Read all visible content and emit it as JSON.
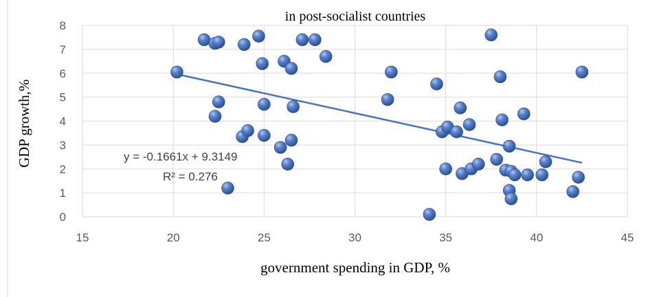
{
  "chart_data": {
    "type": "scatter",
    "title": "in post-socialist countries",
    "xlabel": "government spending in GDP, %",
    "ylabel": "GDP growth,%",
    "xlim": [
      15,
      45
    ],
    "ylim": [
      0,
      8
    ],
    "x_ticks": [
      "15",
      "20",
      "25",
      "30",
      "35",
      "40",
      "45"
    ],
    "y_ticks": [
      "0",
      "1",
      "2",
      "3",
      "4",
      "5",
      "6",
      "7",
      "8"
    ],
    "grid": true,
    "legend": "none",
    "colors": {
      "point": "#4472c4",
      "trendline": "#4472c4",
      "grid": "#d9d9d9"
    },
    "trendline": {
      "slope": -0.1661,
      "intercept": 9.3149,
      "x_range": [
        20.2,
        42.5
      ],
      "equation": "y = -0.1661x + 9.3149",
      "r_squared": "R² = 0.276"
    },
    "points": [
      {
        "x": 20.2,
        "y": 6.05
      },
      {
        "x": 21.7,
        "y": 7.4
      },
      {
        "x": 22.3,
        "y": 7.25
      },
      {
        "x": 22.5,
        "y": 7.3
      },
      {
        "x": 22.3,
        "y": 4.2
      },
      {
        "x": 22.5,
        "y": 4.8
      },
      {
        "x": 23.0,
        "y": 1.2
      },
      {
        "x": 23.8,
        "y": 3.35
      },
      {
        "x": 23.9,
        "y": 7.2
      },
      {
        "x": 24.1,
        "y": 3.6
      },
      {
        "x": 24.7,
        "y": 7.55
      },
      {
        "x": 24.9,
        "y": 6.4
      },
      {
        "x": 25.0,
        "y": 4.7
      },
      {
        "x": 25.0,
        "y": 3.4
      },
      {
        "x": 25.9,
        "y": 2.9
      },
      {
        "x": 26.1,
        "y": 6.5
      },
      {
        "x": 26.3,
        "y": 2.2
      },
      {
        "x": 26.5,
        "y": 6.2
      },
      {
        "x": 26.5,
        "y": 3.2
      },
      {
        "x": 26.6,
        "y": 4.6
      },
      {
        "x": 27.1,
        "y": 7.4
      },
      {
        "x": 27.8,
        "y": 7.4
      },
      {
        "x": 28.4,
        "y": 6.7
      },
      {
        "x": 31.8,
        "y": 4.9
      },
      {
        "x": 32.0,
        "y": 6.05
      },
      {
        "x": 34.1,
        "y": 0.1
      },
      {
        "x": 34.5,
        "y": 5.55
      },
      {
        "x": 34.8,
        "y": 3.55
      },
      {
        "x": 35.0,
        "y": 2.0
      },
      {
        "x": 35.1,
        "y": 3.75
      },
      {
        "x": 35.6,
        "y": 3.55
      },
      {
        "x": 35.8,
        "y": 4.55
      },
      {
        "x": 35.9,
        "y": 1.8
      },
      {
        "x": 36.3,
        "y": 3.85
      },
      {
        "x": 36.4,
        "y": 2.0
      },
      {
        "x": 36.8,
        "y": 2.2
      },
      {
        "x": 37.5,
        "y": 7.6
      },
      {
        "x": 37.8,
        "y": 2.4
      },
      {
        "x": 38.0,
        "y": 5.85
      },
      {
        "x": 38.1,
        "y": 4.05
      },
      {
        "x": 38.3,
        "y": 1.95
      },
      {
        "x": 38.5,
        "y": 1.1
      },
      {
        "x": 38.5,
        "y": 2.95
      },
      {
        "x": 38.6,
        "y": 0.75
      },
      {
        "x": 38.6,
        "y": 1.9
      },
      {
        "x": 38.8,
        "y": 1.75
      },
      {
        "x": 39.3,
        "y": 4.3
      },
      {
        "x": 39.5,
        "y": 1.75
      },
      {
        "x": 40.3,
        "y": 1.75
      },
      {
        "x": 40.5,
        "y": 2.3
      },
      {
        "x": 42.0,
        "y": 1.05
      },
      {
        "x": 42.3,
        "y": 1.65
      },
      {
        "x": 42.5,
        "y": 6.05
      }
    ]
  }
}
